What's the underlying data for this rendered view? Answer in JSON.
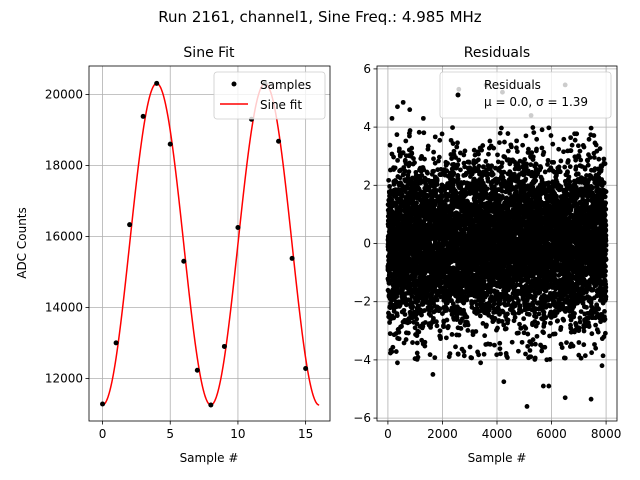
{
  "figure": {
    "suptitle": "Run 2161, channel1, Sine Freq.: 4.985 MHz"
  },
  "colors": {
    "sample": "#000000",
    "fit": "#ff0000",
    "grid": "#b0b0b0",
    "legend_border": "#cccccc"
  },
  "chart_data": [
    {
      "type": "scatter",
      "title": "Sine Fit",
      "xlabel": "Sample #",
      "ylabel": "ADC Counts",
      "xlim": [
        -1,
        16.8
      ],
      "ylim": [
        10800,
        20800
      ],
      "xticks": [
        0,
        5,
        10,
        15
      ],
      "yticks": [
        12000,
        14000,
        16000,
        18000,
        20000
      ],
      "grid": true,
      "legend": "top-right",
      "series": [
        {
          "name": "Samples",
          "kind": "points",
          "x": [
            0,
            1,
            2,
            3,
            4,
            5,
            6,
            7,
            8,
            9,
            10,
            11,
            12,
            13,
            14,
            15
          ],
          "y": [
            11280,
            13000,
            16330,
            19380,
            20310,
            18600,
            15300,
            12230,
            11250,
            12900,
            16250,
            19300,
            20300,
            18680,
            15380,
            12280
          ]
        },
        {
          "name": "Sine fit",
          "kind": "line",
          "model": {
            "offset": 15780,
            "amplitude": 4530,
            "period": 8.0,
            "phase": -1.57,
            "x_start": 0,
            "x_end": 16
          }
        }
      ]
    },
    {
      "type": "scatter",
      "title": "Residuals",
      "xlabel": "Sample #",
      "ylabel": "",
      "xlim": [
        -400,
        8400
      ],
      "ylim": [
        -6.1,
        6.1
      ],
      "xticks": [
        0,
        2000,
        4000,
        6000,
        8000
      ],
      "yticks": [
        -6,
        -4,
        -2,
        0,
        2,
        4,
        6
      ],
      "grid": true,
      "legend": "top-right",
      "legend_entries": [
        "Residuals",
        "μ = 0.0, σ = 1.39"
      ],
      "series": [
        {
          "name": "Residuals",
          "kind": "points",
          "n": 8000,
          "mean": 0.0,
          "std": 1.39,
          "x_range": [
            0,
            8000
          ],
          "notable_points": [
            [
              150,
              4.3
            ],
            [
              350,
              4.7
            ],
            [
              560,
              4.85
            ],
            [
              800,
              4.6
            ],
            [
              1300,
              4.3
            ],
            [
              2600,
              5.3
            ],
            [
              3600,
              5.45
            ],
            [
              4200,
              5.2
            ],
            [
              5250,
              4.4
            ],
            [
              6500,
              5.45
            ],
            [
              1650,
              -4.5
            ],
            [
              3400,
              -4.1
            ],
            [
              4250,
              -4.75
            ],
            [
              5100,
              -5.6
            ],
            [
              5700,
              -4.9
            ],
            [
              5900,
              -4.9
            ],
            [
              6500,
              -5.3
            ],
            [
              7450,
              -5.35
            ],
            [
              7850,
              -4.2
            ],
            [
              350,
              -4.1
            ]
          ]
        }
      ]
    }
  ]
}
